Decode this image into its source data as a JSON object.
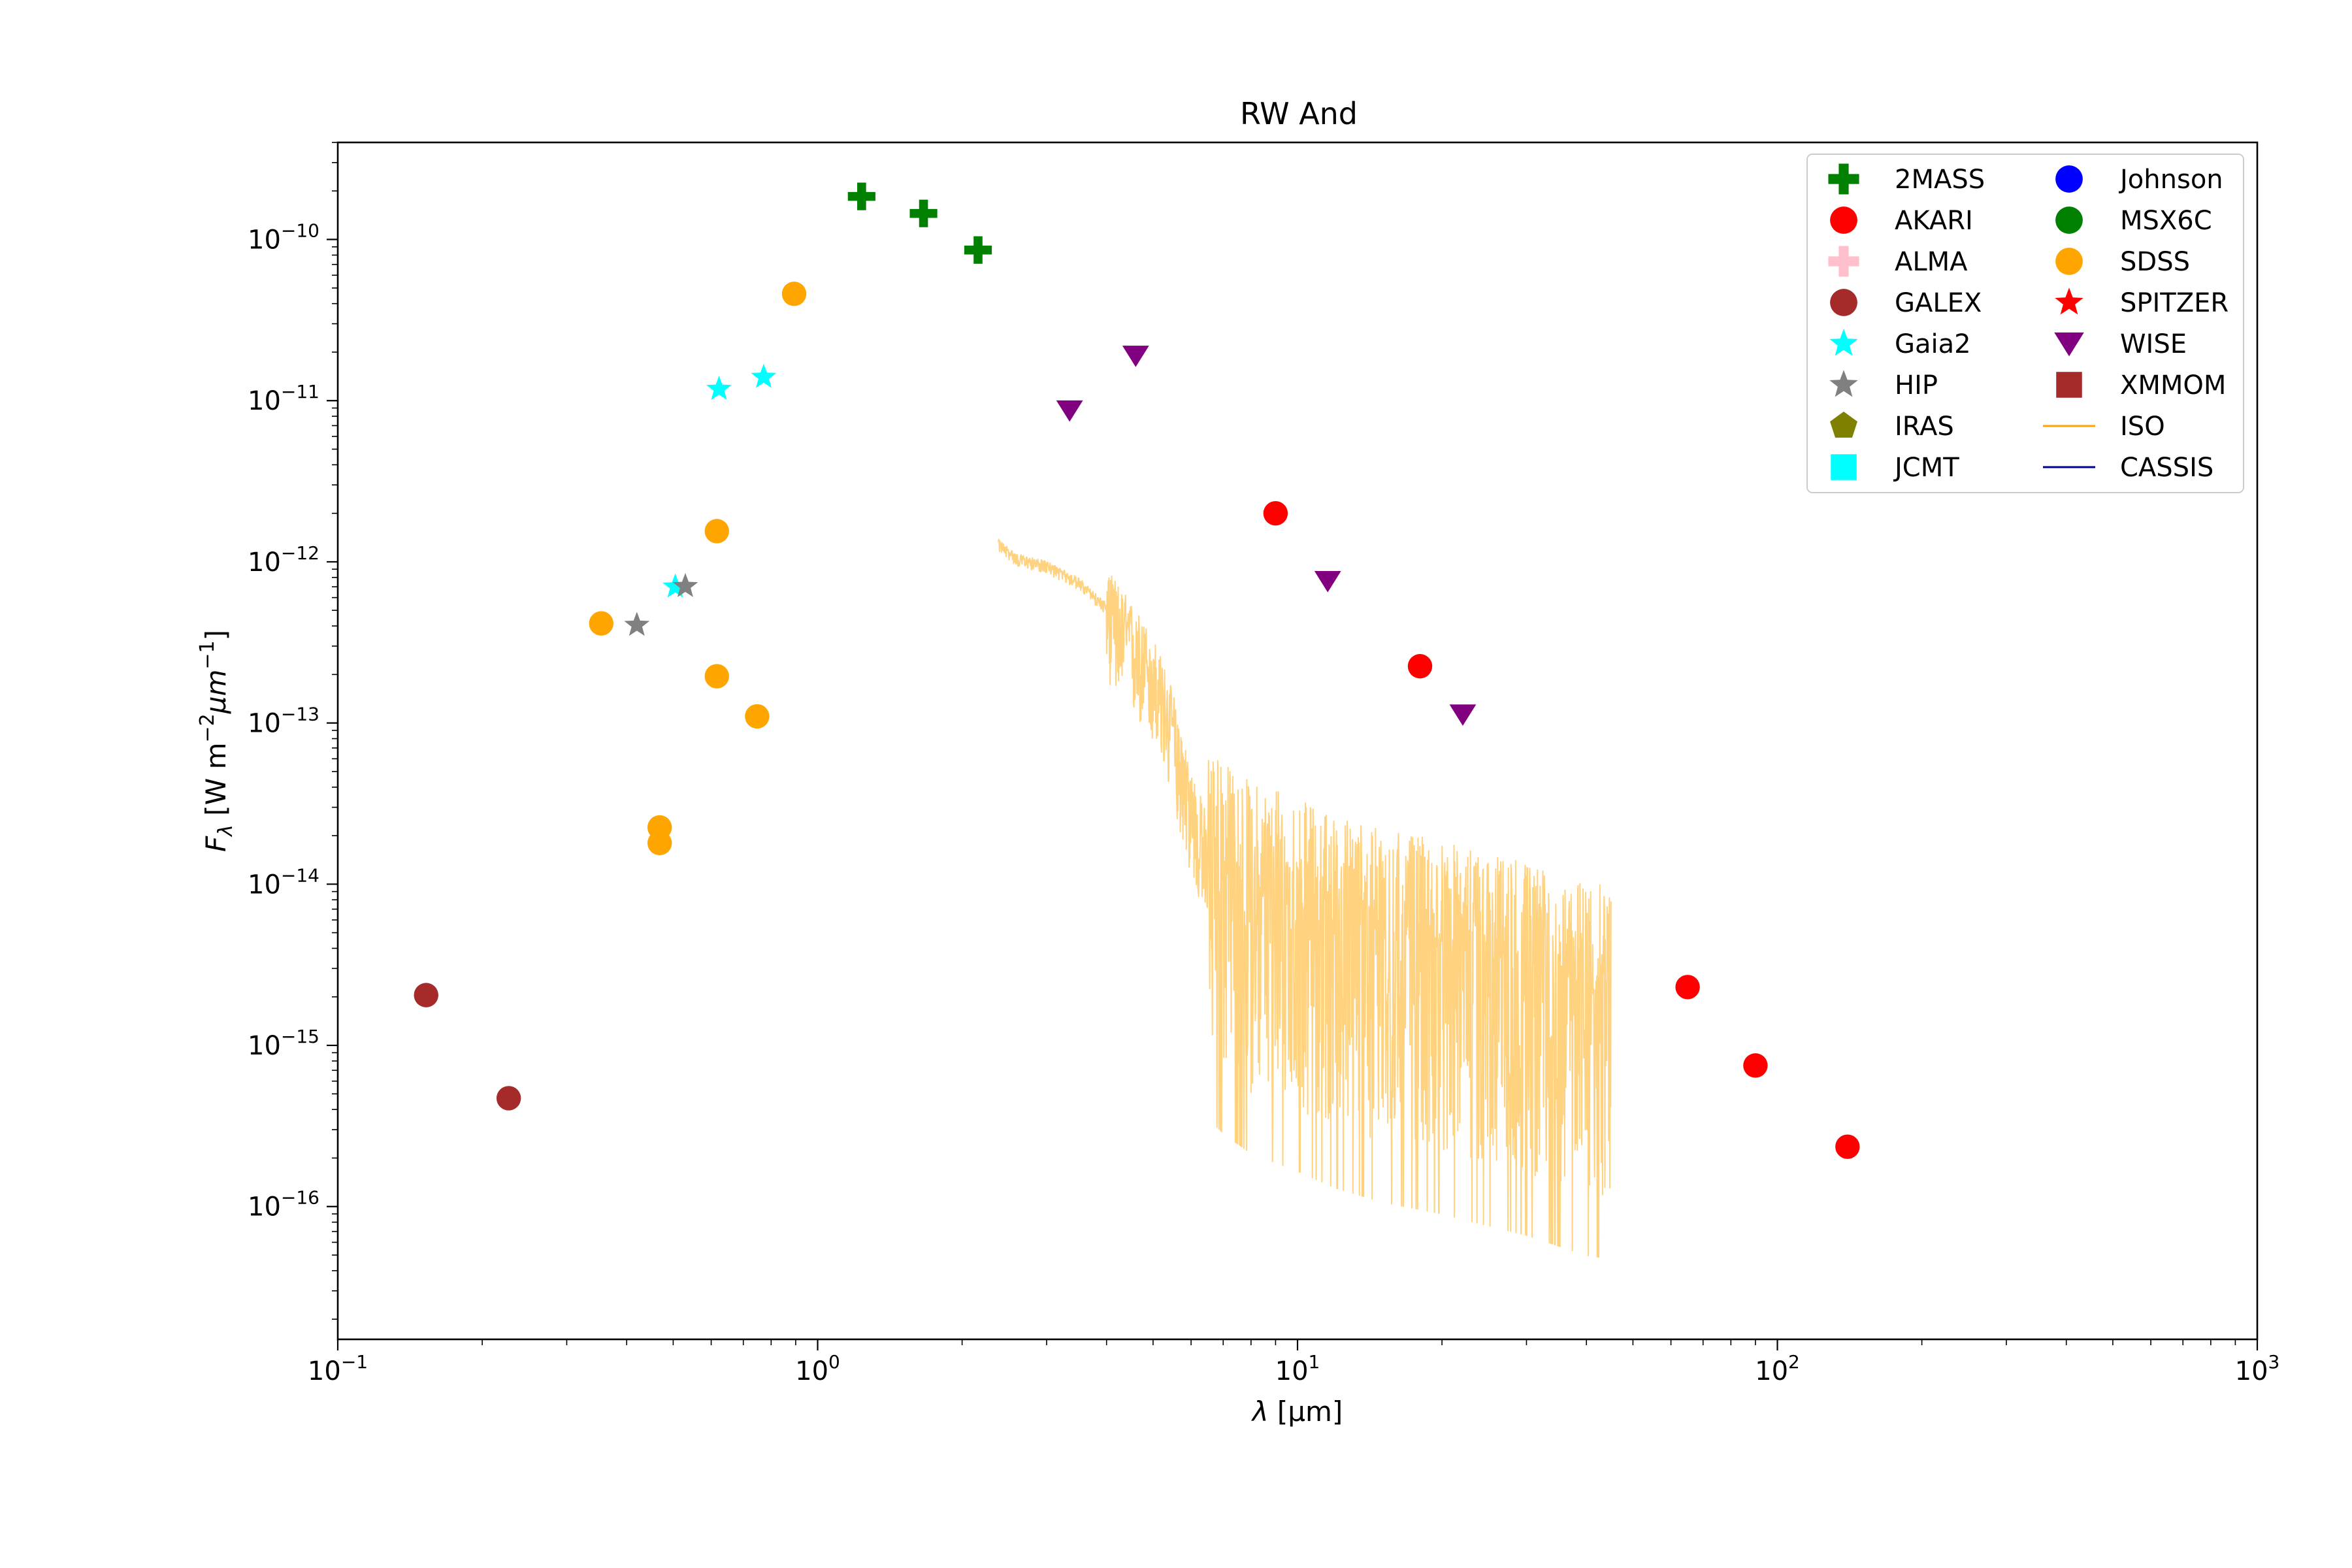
{
  "chart_data": {
    "type": "scatter",
    "title": "RW And",
    "xlabel": {
      "main": "λ",
      "unit": " [μm]"
    },
    "ylabel": {
      "main": "F",
      "sub": "λ",
      "unit_pre": " [W m",
      "exp1": "−2",
      "mid": "μm",
      "exp2": "−1",
      "unit_post": "]"
    },
    "xscale": "log",
    "yscale": "log",
    "xlim": [
      0.1,
      1000
    ],
    "ylim": [
      1.5e-17,
      4e-10
    ],
    "grid": false,
    "legend_placement": "top-right",
    "x_ticks": [
      {
        "value": 0.1,
        "base": "10",
        "exp": "−1"
      },
      {
        "value": 1,
        "base": "10",
        "exp": "0"
      },
      {
        "value": 10,
        "base": "10",
        "exp": "1"
      },
      {
        "value": 100,
        "base": "10",
        "exp": "2"
      },
      {
        "value": 1000,
        "base": "10",
        "exp": "3"
      }
    ],
    "y_ticks": [
      {
        "value": 1e-16,
        "base": "10",
        "exp": "−16"
      },
      {
        "value": 1e-15,
        "base": "10",
        "exp": "−15"
      },
      {
        "value": 1e-14,
        "base": "10",
        "exp": "−14"
      },
      {
        "value": 1e-13,
        "base": "10",
        "exp": "−13"
      },
      {
        "value": 1e-12,
        "base": "10",
        "exp": "−12"
      },
      {
        "value": 1e-11,
        "base": "10",
        "exp": "−11"
      },
      {
        "value": 1e-10,
        "base": "10",
        "exp": "−10"
      }
    ],
    "series": [
      {
        "name": "2MASS",
        "marker": "plus",
        "color": "#008000",
        "points": [
          [
            1.235,
            1.85e-10
          ],
          [
            1.662,
            1.45e-10
          ],
          [
            2.159,
            8.6e-11
          ]
        ]
      },
      {
        "name": "AKARI",
        "marker": "circle",
        "color": "#ff0000",
        "points": [
          [
            9.0,
            2e-12
          ],
          [
            18.0,
            2.25e-13
          ],
          [
            65.0,
            2.3e-15
          ],
          [
            90.0,
            7.5e-16
          ],
          [
            140.0,
            2.35e-16
          ]
        ]
      },
      {
        "name": "ALMA",
        "marker": "plus",
        "color": "#ffc0cb",
        "points": []
      },
      {
        "name": "GALEX",
        "marker": "circle",
        "color": "#a52a2a",
        "points": [
          [
            0.1528,
            2.05e-15
          ],
          [
            0.2271,
            4.7e-16
          ]
        ]
      },
      {
        "name": "Gaia2",
        "marker": "star",
        "color": "#00ffff",
        "points": [
          [
            0.505,
            7e-13
          ],
          [
            0.623,
            1.18e-11
          ],
          [
            0.772,
            1.4e-11
          ]
        ]
      },
      {
        "name": "HIP",
        "marker": "star",
        "color": "#808080",
        "points": [
          [
            0.42,
            4.05e-13
          ],
          [
            0.53,
            7.05e-13
          ]
        ]
      },
      {
        "name": "IRAS",
        "marker": "pentagon",
        "color": "#808000",
        "points": []
      },
      {
        "name": "JCMT",
        "marker": "square",
        "color": "#00ffff",
        "points": []
      },
      {
        "name": "Johnson",
        "marker": "circle",
        "color": "#0000ff",
        "points": []
      },
      {
        "name": "MSX6C",
        "marker": "circle",
        "color": "#008000",
        "points": []
      },
      {
        "name": "SDSS",
        "marker": "circle",
        "color": "#ffa500",
        "points": [
          [
            0.354,
            4.15e-13
          ],
          [
            0.4686,
            2.25e-14
          ],
          [
            0.4686,
            1.8e-14
          ],
          [
            0.6166,
            1.55e-12
          ],
          [
            0.6166,
            1.95e-13
          ],
          [
            0.748,
            1.1e-13
          ],
          [
            0.8932,
            4.6e-11
          ]
        ]
      },
      {
        "name": "SPITZER",
        "marker": "star",
        "color": "#ff0000",
        "points": []
      },
      {
        "name": "WISE",
        "marker": "triangle-down",
        "color": "#800080",
        "points": [
          [
            3.35,
            8.7e-12
          ],
          [
            4.6,
            1.9e-11
          ],
          [
            11.56,
            7.6e-13
          ],
          [
            22.1,
            1.13e-13
          ]
        ]
      },
      {
        "name": "XMMOM",
        "marker": "square",
        "color": "#a52a2a",
        "points": []
      },
      {
        "name": "ISO",
        "marker": "line",
        "color": "#ffa500",
        "line_alpha": 0.5,
        "points": [
          [
            2.38,
            1.3e-12
          ],
          [
            2.6,
            1.05e-12
          ],
          [
            3.0,
            9.5e-13
          ],
          [
            3.5,
            7.5e-13
          ],
          [
            4.0,
            5.2e-13
          ],
          [
            4.5,
            3.2e-13
          ],
          [
            5.0,
            2e-13
          ],
          [
            5.5,
            9e-14
          ],
          [
            6.0,
            3e-14
          ],
          [
            6.5,
            1.5e-14
          ],
          [
            7.0,
            1.2e-14
          ],
          [
            8.0,
            9e-15
          ],
          [
            10.0,
            7e-15
          ],
          [
            12.0,
            5.5e-15
          ],
          [
            15.0,
            4.5e-15
          ],
          [
            20.0,
            3.8e-15
          ],
          [
            25.0,
            3.2e-15
          ],
          [
            30.0,
            2.8e-15
          ],
          [
            35.0,
            2.4e-15
          ],
          [
            40.0,
            2.1e-15
          ],
          [
            45.0,
            2e-15
          ]
        ]
      },
      {
        "name": "CASSIS",
        "marker": "line",
        "color": "#00008b",
        "points": []
      }
    ]
  }
}
